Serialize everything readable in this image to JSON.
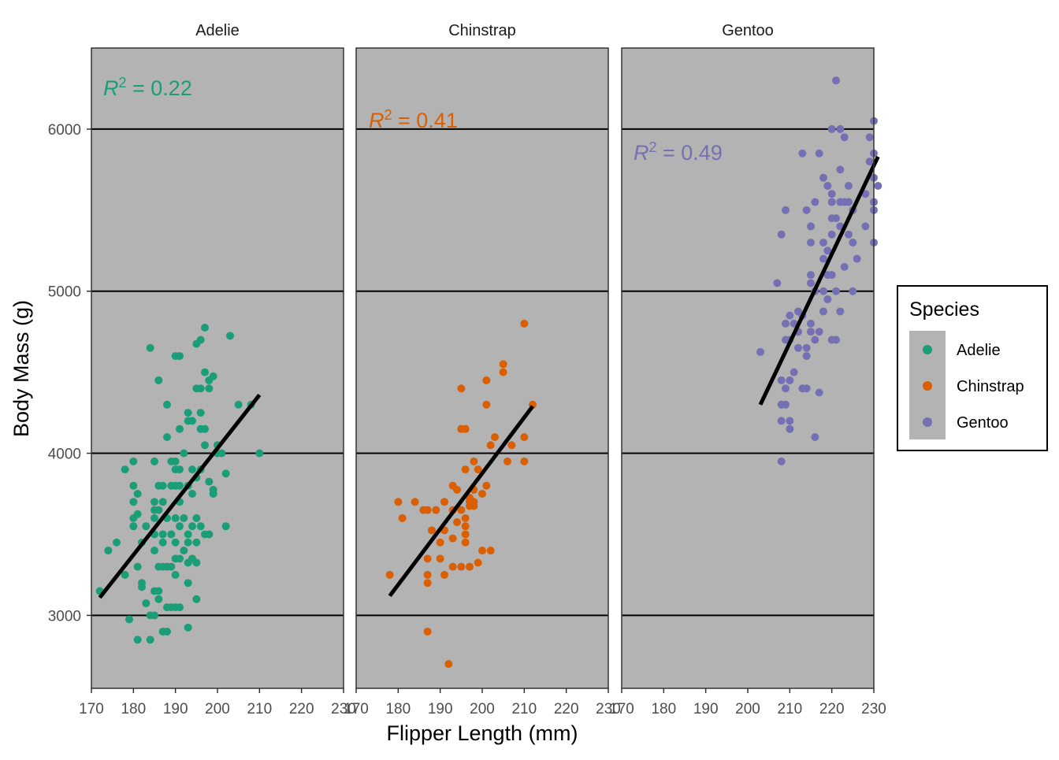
{
  "chart_data": {
    "type": "scatter",
    "facets": [
      "Adelie",
      "Chinstrap",
      "Gentoo"
    ],
    "xlabel": "Flipper Length (mm)",
    "ylabel": "Body Mass (g)",
    "xlim": [
      170,
      230
    ],
    "ylim": [
      2550,
      6500
    ],
    "x_ticks": [
      170,
      180,
      190,
      200,
      210,
      220,
      230
    ],
    "y_ticks": [
      3000,
      4000,
      5000,
      6000
    ],
    "y_grid": true,
    "legend": {
      "title": "Species",
      "position": "right",
      "items": [
        {
          "label": "Adelie",
          "color": "#1b9e77"
        },
        {
          "label": "Chinstrap",
          "color": "#d95f02"
        },
        {
          "label": "Gentoo",
          "color": "#7570b3"
        }
      ]
    },
    "panel_background": "#b3b3b3",
    "series": [
      {
        "name": "Adelie",
        "color": "#1b9e77",
        "r2_label": "= 0.22",
        "fit_line": {
          "x": [
            172,
            210
          ],
          "y": [
            3110,
            4360
          ]
        },
        "points": [
          [
            172,
            3150
          ],
          [
            174,
            3400
          ],
          [
            176,
            3450
          ],
          [
            178,
            3250
          ],
          [
            178,
            3900
          ],
          [
            179,
            2975
          ],
          [
            180,
            3550
          ],
          [
            180,
            3600
          ],
          [
            180,
            3700
          ],
          [
            180,
            3800
          ],
          [
            180,
            3950
          ],
          [
            181,
            3625
          ],
          [
            181,
            3750
          ],
          [
            181,
            3300
          ],
          [
            181,
            2850
          ],
          [
            182,
            3200
          ],
          [
            182,
            3175
          ],
          [
            182,
            3450
          ],
          [
            183,
            3550
          ],
          [
            183,
            3075
          ],
          [
            184,
            2850
          ],
          [
            184,
            3000
          ],
          [
            184,
            4650
          ],
          [
            185,
            3500
          ],
          [
            185,
            3650
          ],
          [
            185,
            3150
          ],
          [
            185,
            3950
          ],
          [
            185,
            3700
          ],
          [
            185,
            3600
          ],
          [
            185,
            3400
          ],
          [
            185,
            3000
          ],
          [
            186,
            3800
          ],
          [
            186,
            3650
          ],
          [
            186,
            3300
          ],
          [
            186,
            3100
          ],
          [
            186,
            4450
          ],
          [
            186,
            3150
          ],
          [
            187,
            2900
          ],
          [
            187,
            3300
          ],
          [
            187,
            3450
          ],
          [
            187,
            3500
          ],
          [
            187,
            3700
          ],
          [
            187,
            3800
          ],
          [
            188,
            3050
          ],
          [
            188,
            3300
          ],
          [
            188,
            2900
          ],
          [
            188,
            3600
          ],
          [
            188,
            4300
          ],
          [
            188,
            4100
          ],
          [
            189,
            3950
          ],
          [
            189,
            3800
          ],
          [
            189,
            3500
          ],
          [
            189,
            3300
          ],
          [
            189,
            3050
          ],
          [
            190,
            3900
          ],
          [
            190,
            3800
          ],
          [
            190,
            3350
          ],
          [
            190,
            3600
          ],
          [
            190,
            4600
          ],
          [
            190,
            3950
          ],
          [
            190,
            3450
          ],
          [
            190,
            3250
          ],
          [
            190,
            3050
          ],
          [
            191,
            3700
          ],
          [
            191,
            3800
          ],
          [
            191,
            4600
          ],
          [
            191,
            3550
          ],
          [
            191,
            3350
          ],
          [
            191,
            4150
          ],
          [
            191,
            3050
          ],
          [
            191,
            3900
          ],
          [
            192,
            3600
          ],
          [
            192,
            4000
          ],
          [
            192,
            3400
          ],
          [
            193,
            3500
          ],
          [
            193,
            4250
          ],
          [
            193,
            4200
          ],
          [
            193,
            3800
          ],
          [
            193,
            2925
          ],
          [
            193,
            3325
          ],
          [
            193,
            3450
          ],
          [
            193,
            3200
          ],
          [
            194,
            3900
          ],
          [
            194,
            3550
          ],
          [
            194,
            4200
          ],
          [
            194,
            3350
          ],
          [
            194,
            3750
          ],
          [
            195,
            3600
          ],
          [
            195,
            4400
          ],
          [
            195,
            3325
          ],
          [
            195,
            3450
          ],
          [
            195,
            3850
          ],
          [
            195,
            4675
          ],
          [
            195,
            3100
          ],
          [
            196,
            4700
          ],
          [
            196,
            4400
          ],
          [
            196,
            4250
          ],
          [
            196,
            4150
          ],
          [
            196,
            3550
          ],
          [
            196,
            3900
          ],
          [
            197,
            4775
          ],
          [
            197,
            4500
          ],
          [
            197,
            4050
          ],
          [
            197,
            4150
          ],
          [
            197,
            3500
          ],
          [
            198,
            4400
          ],
          [
            198,
            4450
          ],
          [
            198,
            3825
          ],
          [
            198,
            3500
          ],
          [
            199,
            3750
          ],
          [
            199,
            3775
          ],
          [
            199,
            4475
          ],
          [
            200,
            4000
          ],
          [
            200,
            4050
          ],
          [
            201,
            4000
          ],
          [
            202,
            3875
          ],
          [
            202,
            3550
          ],
          [
            203,
            4725
          ],
          [
            205,
            4300
          ],
          [
            208,
            4300
          ],
          [
            210,
            4000
          ]
        ]
      },
      {
        "name": "Chinstrap",
        "color": "#d95f02",
        "r2_label": "= 0.41",
        "fit_line": {
          "x": [
            178,
            212
          ],
          "y": [
            3120,
            4290
          ]
        },
        "points": [
          [
            178,
            3250
          ],
          [
            180,
            3700
          ],
          [
            181,
            3600
          ],
          [
            184,
            3700
          ],
          [
            186,
            3650
          ],
          [
            187,
            3200
          ],
          [
            187,
            3250
          ],
          [
            187,
            3350
          ],
          [
            187,
            3650
          ],
          [
            187,
            2900
          ],
          [
            188,
            3525
          ],
          [
            189,
            3650
          ],
          [
            190,
            3350
          ],
          [
            190,
            3450
          ],
          [
            191,
            3700
          ],
          [
            191,
            3250
          ],
          [
            191,
            3525
          ],
          [
            192,
            2700
          ],
          [
            193,
            3800
          ],
          [
            193,
            3475
          ],
          [
            193,
            3650
          ],
          [
            193,
            3300
          ],
          [
            194,
            3775
          ],
          [
            194,
            3575
          ],
          [
            195,
            4400
          ],
          [
            195,
            4150
          ],
          [
            195,
            3650
          ],
          [
            195,
            3300
          ],
          [
            196,
            3900
          ],
          [
            196,
            3550
          ],
          [
            196,
            3600
          ],
          [
            196,
            3500
          ],
          [
            196,
            3450
          ],
          [
            196,
            4150
          ],
          [
            197,
            3725
          ],
          [
            197,
            3700
          ],
          [
            197,
            3300
          ],
          [
            197,
            3725
          ],
          [
            197,
            3675
          ],
          [
            198,
            3675
          ],
          [
            198,
            3950
          ],
          [
            198,
            3775
          ],
          [
            198,
            3700
          ],
          [
            199,
            3900
          ],
          [
            199,
            3325
          ],
          [
            200,
            3400
          ],
          [
            200,
            3750
          ],
          [
            201,
            4450
          ],
          [
            201,
            4300
          ],
          [
            201,
            3800
          ],
          [
            202,
            3400
          ],
          [
            202,
            4050
          ],
          [
            203,
            4100
          ],
          [
            205,
            4550
          ],
          [
            205,
            4500
          ],
          [
            206,
            3950
          ],
          [
            207,
            4050
          ],
          [
            210,
            4800
          ],
          [
            210,
            3950
          ],
          [
            210,
            4100
          ],
          [
            212,
            4300
          ]
        ]
      },
      {
        "name": "Gentoo",
        "color": "#7570b3",
        "r2_label": "= 0.49",
        "fit_line": {
          "x": [
            203,
            231
          ],
          "y": [
            4300,
            5830
          ]
        },
        "points": [
          [
            203,
            4625
          ],
          [
            207,
            5050
          ],
          [
            208,
            3950
          ],
          [
            208,
            4300
          ],
          [
            208,
            4450
          ],
          [
            208,
            4200
          ],
          [
            208,
            5350
          ],
          [
            209,
            4300
          ],
          [
            209,
            5500
          ],
          [
            209,
            4800
          ],
          [
            209,
            4400
          ],
          [
            209,
            4700
          ],
          [
            210,
            4450
          ],
          [
            210,
            4200
          ],
          [
            210,
            4850
          ],
          [
            210,
            4150
          ],
          [
            210,
            4700
          ],
          [
            211,
            4500
          ],
          [
            211,
            4800
          ],
          [
            212,
            4875
          ],
          [
            212,
            4750
          ],
          [
            212,
            4650
          ],
          [
            213,
            4850
          ],
          [
            213,
            5850
          ],
          [
            213,
            4400
          ],
          [
            214,
            4650
          ],
          [
            214,
            5500
          ],
          [
            214,
            4600
          ],
          [
            214,
            4400
          ],
          [
            215,
            4800
          ],
          [
            215,
            5400
          ],
          [
            215,
            5050
          ],
          [
            215,
            5300
          ],
          [
            215,
            4750
          ],
          [
            215,
            5100
          ],
          [
            216,
            5000
          ],
          [
            216,
            4700
          ],
          [
            216,
            4100
          ],
          [
            216,
            5550
          ],
          [
            217,
            5850
          ],
          [
            217,
            4375
          ],
          [
            217,
            4750
          ],
          [
            218,
            5300
          ],
          [
            218,
            5700
          ],
          [
            218,
            4875
          ],
          [
            218,
            5000
          ],
          [
            218,
            5200
          ],
          [
            219,
            5100
          ],
          [
            219,
            5250
          ],
          [
            219,
            5650
          ],
          [
            219,
            4950
          ],
          [
            220,
            5600
          ],
          [
            220,
            6000
          ],
          [
            220,
            5550
          ],
          [
            220,
            4700
          ],
          [
            220,
            5450
          ],
          [
            220,
            5350
          ],
          [
            220,
            5100
          ],
          [
            221,
            6300
          ],
          [
            221,
            5000
          ],
          [
            221,
            5450
          ],
          [
            221,
            4700
          ],
          [
            222,
            6000
          ],
          [
            222,
            5750
          ],
          [
            222,
            5550
          ],
          [
            222,
            4875
          ],
          [
            222,
            5400
          ],
          [
            223,
            5950
          ],
          [
            223,
            5550
          ],
          [
            223,
            5150
          ],
          [
            224,
            5650
          ],
          [
            224,
            5550
          ],
          [
            224,
            5350
          ],
          [
            225,
            5300
          ],
          [
            225,
            5500
          ],
          [
            225,
            5000
          ],
          [
            226,
            5200
          ],
          [
            228,
            5600
          ],
          [
            228,
            5400
          ],
          [
            229,
            5950
          ],
          [
            229,
            5800
          ],
          [
            230,
            6050
          ],
          [
            230,
            5850
          ],
          [
            230,
            5700
          ],
          [
            230,
            5550
          ],
          [
            230,
            5500
          ],
          [
            230,
            5300
          ],
          [
            231,
            5650
          ]
        ]
      }
    ]
  }
}
